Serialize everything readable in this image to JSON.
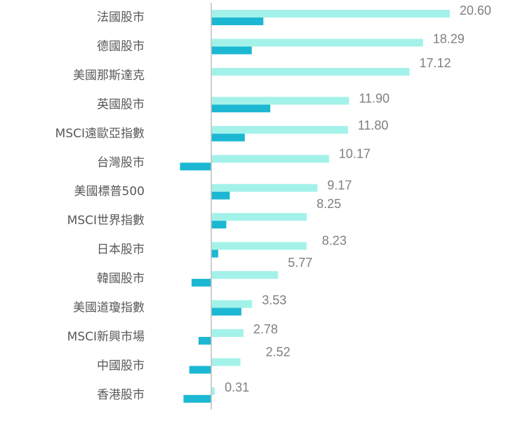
{
  "chart_data": {
    "type": "bar",
    "orientation": "horizontal",
    "categories": [
      "法國股市",
      "德國股市",
      "美國那斯達克",
      "英國股市",
      "MSCI遠歐亞指數",
      "台灣股市",
      "美國標普500",
      "MSCI世界指數",
      "日本股市",
      "韓國股市",
      "美國道瓊指數",
      "MSCI新興市場",
      "中國股市",
      "香港股市"
    ],
    "series": [
      {
        "values": [
          20.6,
          18.29,
          17.12,
          11.9,
          11.8,
          10.17,
          9.17,
          8.25,
          8.23,
          5.77,
          3.53,
          2.78,
          2.52,
          0.31
        ],
        "color": "#a3f2ea",
        "labels": [
          "20.60",
          "18.29",
          "17.12",
          "11.90",
          "11.80",
          "10.17",
          "9.17",
          "8.25",
          "8.23",
          "5.77",
          "3.53",
          "2.78",
          "2.52",
          "0.31"
        ]
      },
      {
        "values": [
          4.5,
          3.5,
          0,
          5.1,
          2.9,
          -2.7,
          1.6,
          1.3,
          0.6,
          -1.7,
          2.6,
          -1.1,
          -1.9,
          -2.4
        ],
        "color": "#1cb8d3"
      }
    ],
    "label_color": "#7f7f7f",
    "axis_color": "#bfbfbf",
    "xlim": [
      -3.0,
      28.0
    ],
    "grid": false,
    "legend": "none"
  }
}
